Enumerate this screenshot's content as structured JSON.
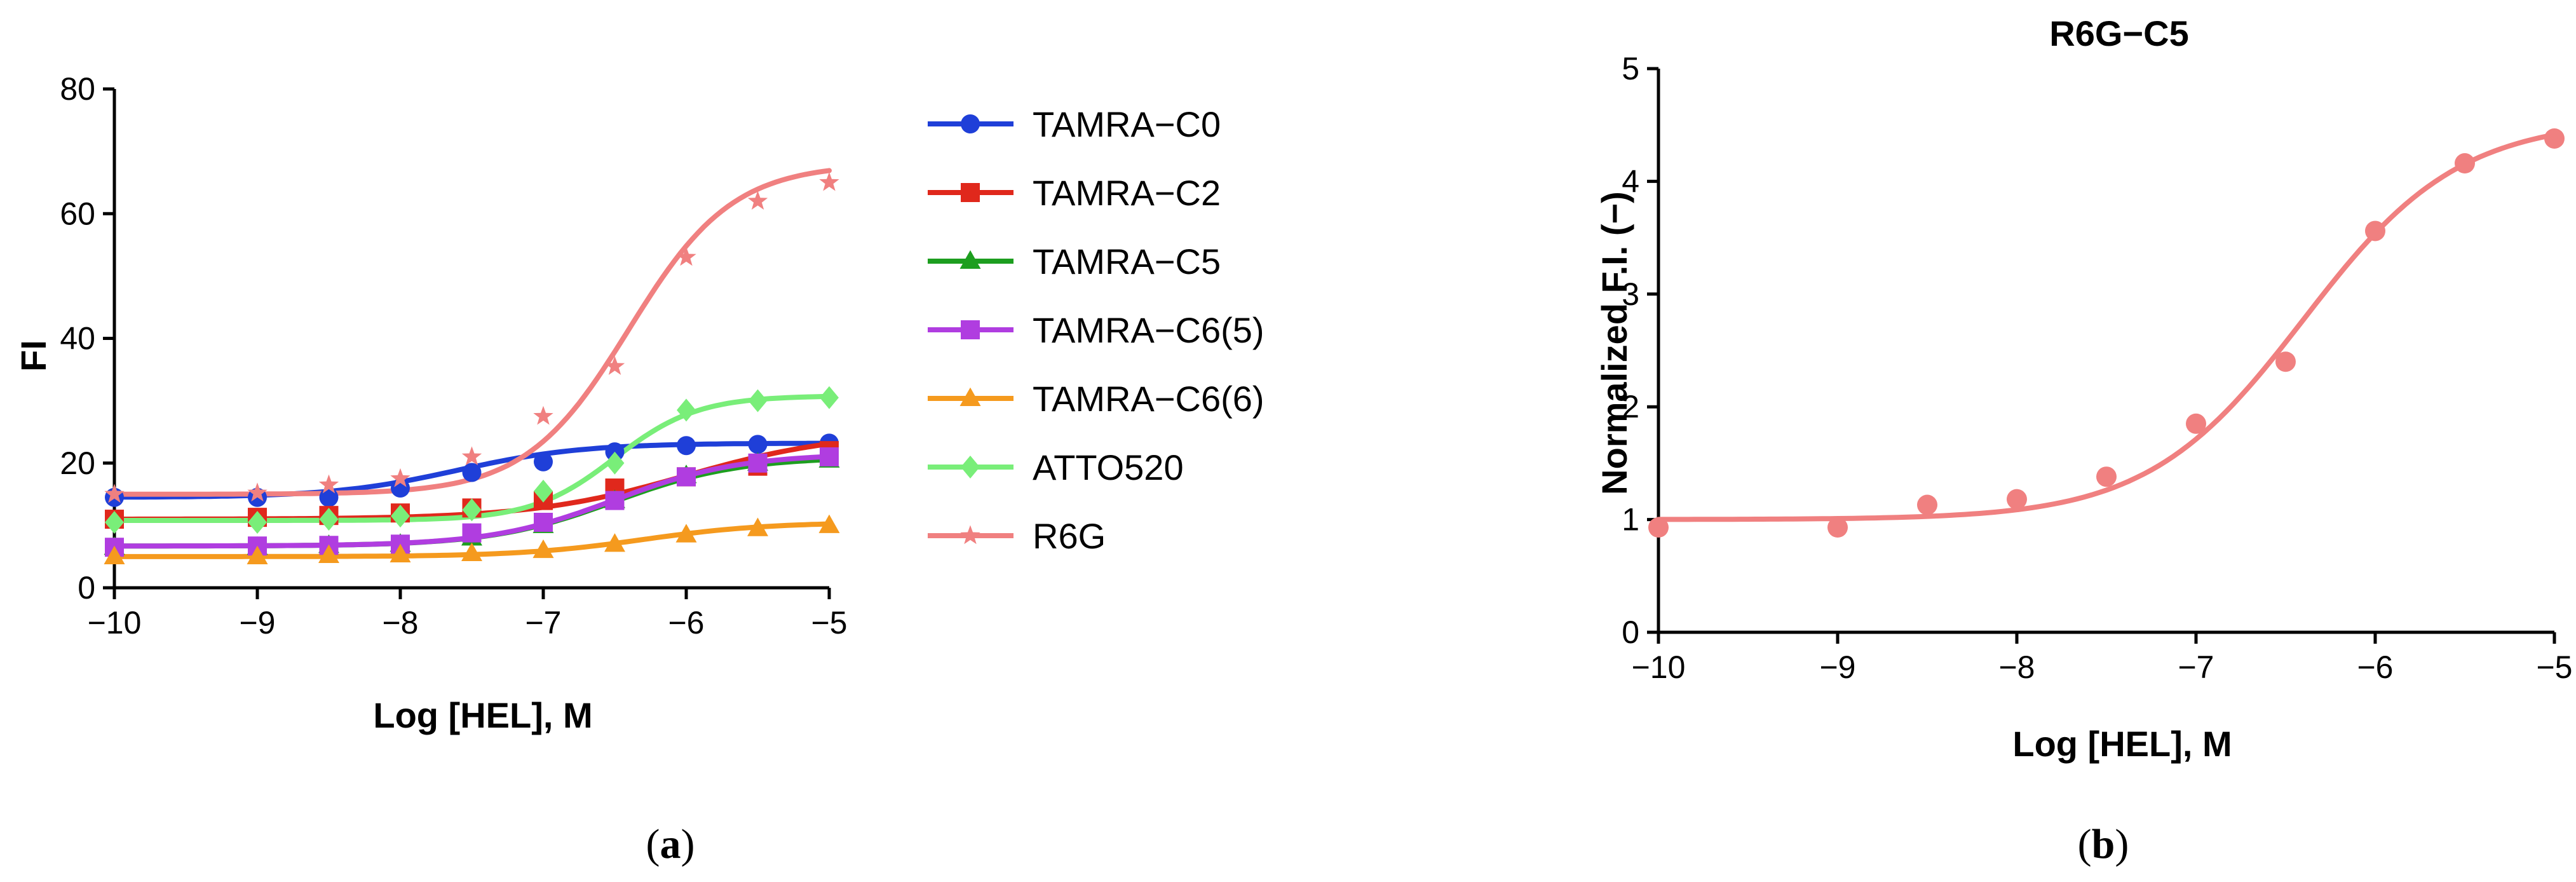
{
  "chart_data": [
    {
      "type": "line",
      "panel": "a",
      "panel_label": "(a)",
      "panel_letter": "a",
      "title": "",
      "xlabel": "Log [HEL], M",
      "ylabel": "FI",
      "xlim": [
        -10,
        -5
      ],
      "ylim": [
        0,
        80
      ],
      "xticks": [
        -10,
        -9,
        -8,
        -7,
        -6,
        -5
      ],
      "xtick_labels": [
        "−10",
        "−9",
        "−8",
        "−7",
        "−6",
        "−5"
      ],
      "yticks": [
        0,
        20,
        40,
        60,
        80
      ],
      "ytick_labels": [
        "0",
        "20",
        "40",
        "60",
        "80"
      ],
      "x": [
        -10,
        -9,
        -8.5,
        -8,
        -7.5,
        -7,
        -6.5,
        -6,
        -5.5,
        -5
      ],
      "legend_position": "right",
      "series": [
        {
          "name": "TAMRA−C0",
          "color": "#1f3fd8",
          "marker": "circle",
          "values": [
            14.5,
            14.5,
            14.5,
            16.0,
            18.5,
            20.2,
            21.8,
            22.8,
            23.0,
            23.2
          ],
          "fit": {
            "bottom": 14.5,
            "top": 23.2,
            "ec50": -7.6,
            "hill": 1.0
          }
        },
        {
          "name": "TAMRA−C2",
          "color": "#e0281c",
          "marker": "square",
          "values": [
            11.0,
            11.3,
            11.6,
            12.0,
            12.8,
            14.0,
            16.0,
            17.8,
            19.5,
            22.0
          ],
          "fit": {
            "bottom": 11.0,
            "top": 25.0,
            "ec50": -6.0,
            "hill": 0.8
          }
        },
        {
          "name": "TAMRA−C5",
          "color": "#1d9e1f",
          "marker": "triangle",
          "values": [
            6.5,
            6.5,
            6.8,
            7.0,
            8.0,
            10.0,
            14.0,
            18.0,
            20.0,
            20.5
          ],
          "fit": {
            "bottom": 6.7,
            "top": 21.0,
            "ec50": -6.5,
            "hill": 1.0
          }
        },
        {
          "name": "TAMRA−C6(5)",
          "color": "#b03de0",
          "marker": "square",
          "values": [
            6.5,
            6.7,
            6.8,
            7.0,
            8.8,
            10.5,
            14.0,
            17.8,
            20.0,
            21.0
          ],
          "fit": {
            "bottom": 6.7,
            "top": 21.5,
            "ec50": -6.5,
            "hill": 1.0
          }
        },
        {
          "name": "TAMRA−C6(6)",
          "color": "#f59a1e",
          "marker": "triangle",
          "values": [
            5.0,
            5.0,
            5.2,
            5.3,
            5.5,
            6.0,
            7.0,
            8.5,
            9.5,
            10.0
          ],
          "fit": {
            "bottom": 5.0,
            "top": 10.5,
            "ec50": -6.3,
            "hill": 1.0
          }
        },
        {
          "name": "ATTO520",
          "color": "#79ee79",
          "marker": "diamond",
          "values": [
            10.5,
            10.5,
            11.0,
            11.5,
            12.5,
            15.5,
            20.0,
            28.5,
            30.0,
            30.5
          ],
          "fit": {
            "bottom": 10.8,
            "top": 30.8,
            "ec50": -6.5,
            "hill": 1.5
          }
        },
        {
          "name": "R6G",
          "color": "#f08080",
          "marker": "star",
          "values": [
            15.0,
            15.2,
            16.5,
            17.5,
            21.0,
            27.5,
            35.5,
            53.0,
            62.0,
            65.0
          ],
          "fit": {
            "bottom": 15.0,
            "top": 68.0,
            "ec50": -6.4,
            "hill": 1.2
          }
        }
      ]
    },
    {
      "type": "line",
      "panel": "b",
      "panel_label": "(b)",
      "panel_letter": "b",
      "title": "R6G−C5",
      "xlabel": "Log [HEL], M",
      "ylabel": "Normalized F.I. (−)",
      "xlim": [
        -10,
        -5
      ],
      "ylim": [
        0,
        5
      ],
      "xticks": [
        -10,
        -9,
        -8,
        -7,
        -6,
        -5
      ],
      "xtick_labels": [
        "−10",
        "−9",
        "−8",
        "−7",
        "−6",
        "−5"
      ],
      "yticks": [
        0,
        1,
        2,
        3,
        4,
        5
      ],
      "ytick_labels": [
        "0",
        "1",
        "2",
        "3",
        "4",
        "5"
      ],
      "x": [
        -10,
        -9,
        -8.5,
        -8,
        -7.5,
        -7,
        -6.5,
        -6,
        -5.5,
        -5
      ],
      "series": [
        {
          "name": "R6G−C5",
          "color": "#f08080",
          "marker": "circle",
          "values": [
            0.93,
            0.93,
            1.13,
            1.18,
            1.38,
            1.85,
            2.4,
            3.56,
            4.16,
            4.38
          ],
          "fit": {
            "bottom": 1.0,
            "top": 4.55,
            "ec50": -6.4,
            "hill": 1.0
          }
        }
      ]
    }
  ]
}
